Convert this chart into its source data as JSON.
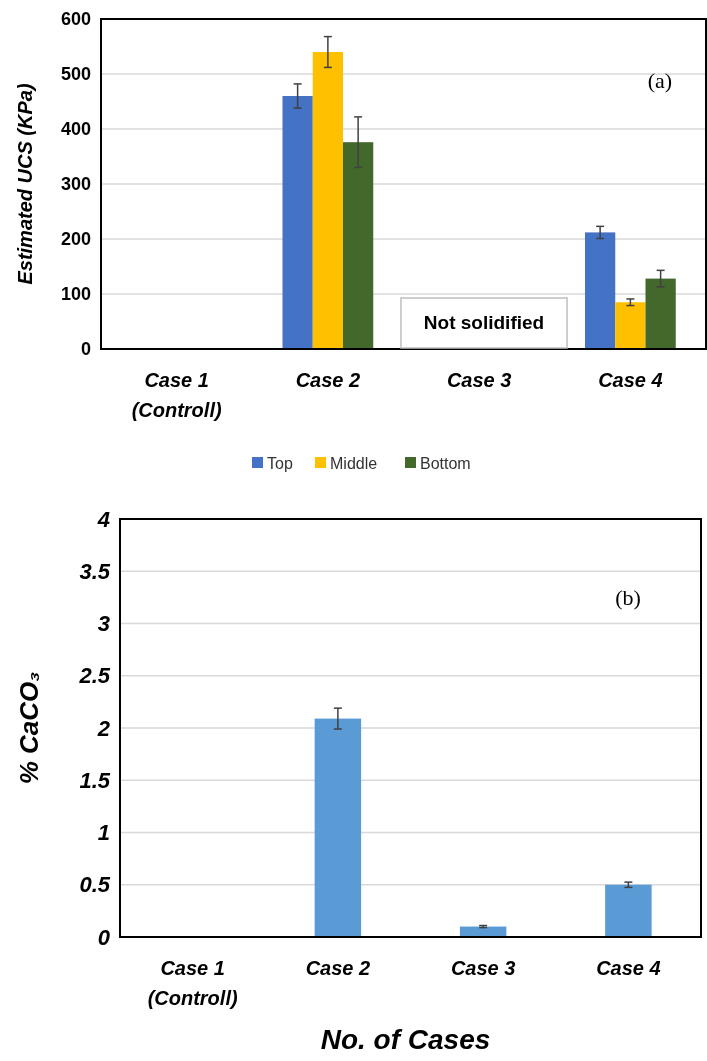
{
  "chart_data": [
    {
      "type": "bar",
      "ylabel": "Estimated UCS (KPa)",
      "categories": [
        "Case 1\n(Controll)",
        "Case 2",
        "Case 3",
        "Case 4"
      ],
      "ylim": [
        0,
        600
      ],
      "yticks": [
        0,
        100,
        200,
        300,
        400,
        500,
        600
      ],
      "grid": "y",
      "legend": "bottom",
      "series": [
        {
          "name": "Top",
          "color": "#4472c4",
          "values": [
            null,
            460,
            null,
            212
          ],
          "errors": [
            null,
            22,
            null,
            11
          ]
        },
        {
          "name": "Middle",
          "color": "#ffc000",
          "values": [
            null,
            540,
            null,
            85
          ],
          "errors": [
            null,
            28,
            null,
            6
          ]
        },
        {
          "name": "Bottom",
          "color": "#43682b",
          "values": [
            null,
            376,
            null,
            128
          ],
          "errors": [
            null,
            46,
            null,
            15
          ]
        }
      ],
      "annotations": [
        "Not solidified",
        "(a)"
      ]
    },
    {
      "type": "bar",
      "xlabel": "No. of Cases",
      "ylabel": "% CaCO₃",
      "categories": [
        "Case 1\n(Controll)",
        "Case 2",
        "Case 3",
        "Case 4"
      ],
      "ylim": [
        0,
        4
      ],
      "yticks": [
        0,
        0.5,
        1,
        1.5,
        2,
        2.5,
        3,
        3.5,
        4
      ],
      "grid": "y",
      "series": [
        {
          "color": "#5b9bd5",
          "values": [
            null,
            2.09,
            0.1,
            0.5
          ],
          "errors": [
            null,
            0.1,
            0.01,
            0.025
          ]
        }
      ],
      "annotations": [
        "(b)"
      ]
    }
  ]
}
